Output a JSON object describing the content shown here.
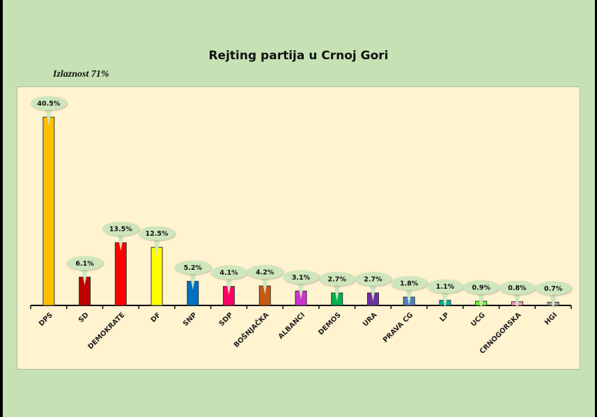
{
  "chart_data": {
    "type": "bar",
    "title": "Rejting partija u Crnoj Gori",
    "subtitle": "Izlaznost 71%",
    "categories": [
      "DPS",
      "SD",
      "DEMOKRATE",
      "DF",
      "SNP",
      "SDP",
      "BOŠNJAČKA",
      "ALBANCI",
      "DEMOS",
      "URA",
      "PRAVA CG",
      "LP",
      "UCG",
      "CRNOGORSKA",
      "HGI"
    ],
    "values": [
      40.5,
      6.1,
      13.5,
      12.5,
      5.2,
      4.1,
      4.2,
      3.1,
      2.7,
      2.7,
      1.8,
      1.1,
      0.9,
      0.8,
      0.7
    ],
    "labels": [
      "40.5%",
      "6.1%",
      "13.5%",
      "12.5%",
      "5.2%",
      "4.1%",
      "4.2%",
      "3.1%",
      "2.7%",
      "2.7%",
      "1.8%",
      "1.1%",
      "0.9%",
      "0.8%",
      "0.7%"
    ],
    "colors": [
      "#ffc000",
      "#c00000",
      "#ff0000",
      "#ffff00",
      "#0070c0",
      "#ff0066",
      "#c55a11",
      "#cc33cc",
      "#00b050",
      "#7030a0",
      "#4f81bd",
      "#00b0a0",
      "#66ff33",
      "#ff99cc",
      "#a6a6a6"
    ],
    "xlabel": "",
    "ylabel": "",
    "ylim": [
      0,
      40.5
    ],
    "grid": false,
    "legend": "none"
  },
  "colors": {
    "background": "#c6e2b4",
    "plot_area": "#fff3d0",
    "callout": "#cfe6bd"
  }
}
